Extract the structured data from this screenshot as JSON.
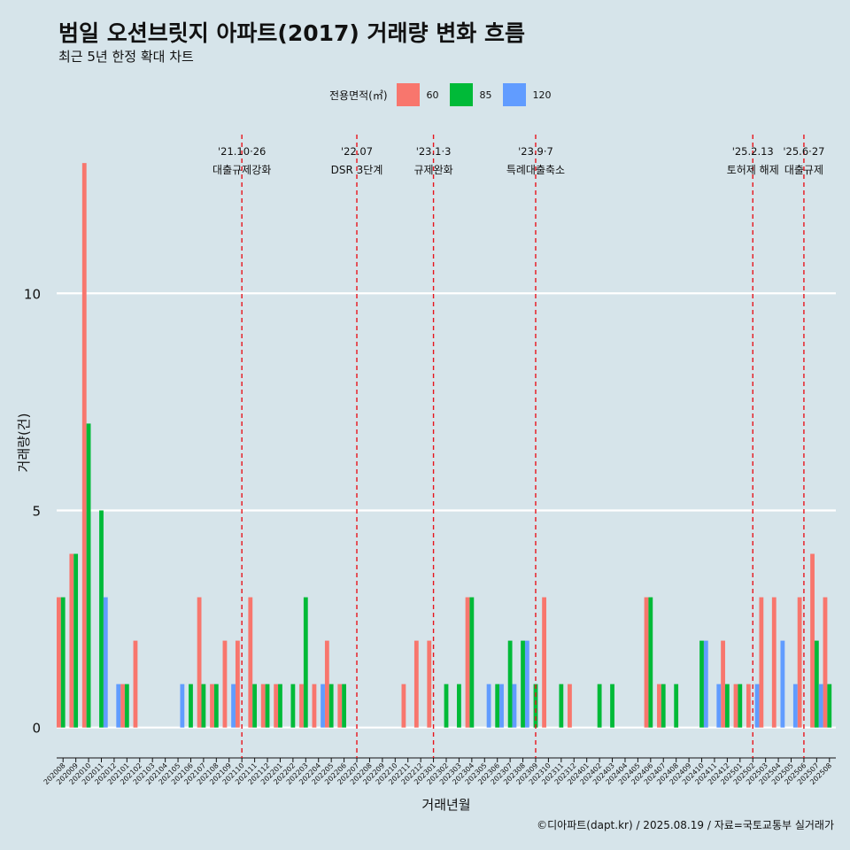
{
  "title": "범일 오션브릿지 아파트(2017) 거래량 변화 흐름",
  "subtitle": "최근 5년 한정 확대 차트",
  "caption": "©디아파트(dapt.kr) / 2025.08.19 / 자료=국토교통부 실거래가",
  "legend": {
    "title": "전용면적(㎡)",
    "items": [
      {
        "label": "60",
        "color": "#f8766d"
      },
      {
        "label": "85",
        "color": "#00ba38"
      },
      {
        "label": "120",
        "color": "#619cff"
      }
    ]
  },
  "chart_data": {
    "type": "bar",
    "xlabel": "거래년월",
    "ylabel": "거래량(건)",
    "ylim": [
      -0.7,
      13.9
    ],
    "yticks": [
      0,
      5,
      10
    ],
    "grid": true,
    "legend_position": "top",
    "categories": [
      "202008",
      "202009",
      "202010",
      "202011",
      "202012",
      "202101",
      "202102",
      "202103",
      "202104",
      "202105",
      "202106",
      "202107",
      "202108",
      "202109",
      "202110",
      "202111",
      "202112",
      "202201",
      "202202",
      "202203",
      "202204",
      "202205",
      "202206",
      "202207",
      "202208",
      "202209",
      "202210",
      "202211",
      "202212",
      "202301",
      "202302",
      "202303",
      "202304",
      "202305",
      "202306",
      "202307",
      "202308",
      "202309",
      "202310",
      "202311",
      "202312",
      "202401",
      "202402",
      "202403",
      "202404",
      "202405",
      "202406",
      "202407",
      "202408",
      "202409",
      "202410",
      "202411",
      "202412",
      "202501",
      "202502",
      "202503",
      "202504",
      "202505",
      "202506",
      "202507",
      "202508"
    ],
    "series": [
      {
        "name": "60",
        "color": "#f8766d",
        "values": [
          3,
          4,
          13,
          0,
          0,
          1,
          2,
          0,
          0,
          0,
          0,
          3,
          1,
          2,
          2,
          3,
          1,
          1,
          0,
          1,
          1,
          2,
          1,
          0,
          0,
          0,
          0,
          1,
          2,
          2,
          0,
          0,
          3,
          0,
          0,
          0,
          0,
          0,
          3,
          0,
          1,
          0,
          0,
          0,
          0,
          0,
          3,
          1,
          0,
          0,
          0,
          0,
          2,
          1,
          1,
          3,
          3,
          0,
          3,
          4,
          3
        ]
      },
      {
        "name": "85",
        "color": "#00ba38",
        "values": [
          3,
          4,
          7,
          5,
          0,
          1,
          0,
          0,
          0,
          0,
          1,
          1,
          1,
          0,
          0,
          1,
          1,
          1,
          1,
          3,
          0,
          1,
          1,
          0,
          0,
          0,
          0,
          0,
          0,
          0,
          1,
          1,
          3,
          0,
          1,
          2,
          2,
          1,
          0,
          1,
          0,
          0,
          1,
          1,
          0,
          0,
          3,
          1,
          1,
          0,
          2,
          0,
          1,
          1,
          0,
          0,
          0,
          0,
          0,
          2,
          1
        ]
      },
      {
        "name": "120",
        "color": "#619cff",
        "values": [
          0,
          0,
          0,
          3,
          1,
          0,
          0,
          0,
          0,
          1,
          0,
          0,
          0,
          1,
          0,
          0,
          0,
          0,
          0,
          0,
          1,
          0,
          0,
          0,
          0,
          0,
          0,
          0,
          0,
          0,
          0,
          0,
          0,
          1,
          1,
          1,
          2,
          0,
          0,
          0,
          0,
          0,
          0,
          0,
          0,
          0,
          0,
          0,
          0,
          0,
          2,
          1,
          0,
          0,
          1,
          0,
          2,
          1,
          0,
          1,
          0
        ]
      }
    ],
    "events": [
      {
        "category": "202110",
        "date": "'21.10·26",
        "label": "대출규제강화"
      },
      {
        "category": "202207",
        "date": "'22.07",
        "label": "DSR 3단계"
      },
      {
        "category": "202301",
        "date": "'23.1·3",
        "label": "규제완화"
      },
      {
        "category": "202309",
        "date": "'23.9·7",
        "label": "특례대출축소"
      },
      {
        "category": "202502",
        "date": "'25.2.13",
        "label": "토허제 해제"
      },
      {
        "category": "202506",
        "date": "'25.6·27",
        "label": "대출규제"
      }
    ]
  }
}
